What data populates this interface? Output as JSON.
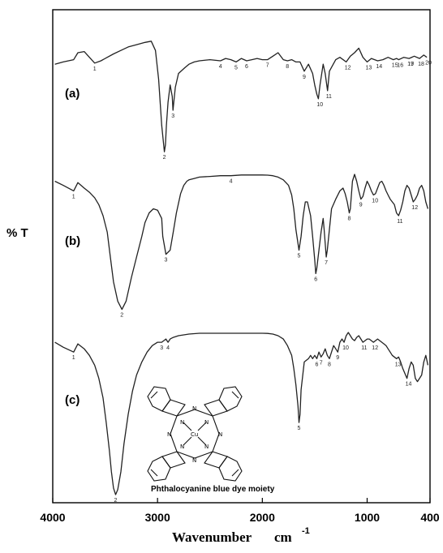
{
  "chart_data": {
    "type": "line",
    "ylabel": "% T",
    "xlabel": "Wavenumber",
    "xunit": "cm",
    "xunit_exp": "-1",
    "xlim": [
      4000,
      400
    ],
    "xticks": [
      "4000",
      "3000",
      "2000",
      "1000",
      "400"
    ],
    "xtick_values": [
      4000,
      3000,
      2000,
      1000,
      400
    ],
    "grid": false,
    "inset_caption": "Phthalocyanine blue dye moiety",
    "inset_atoms": {
      "n": "N",
      "cu": "Cu"
    },
    "series": [
      {
        "name": "(a)",
        "x": [
          3980,
          3900,
          3800,
          3760,
          3700,
          3650,
          3600,
          3540,
          3480,
          3420,
          3350,
          3280,
          3200,
          3120,
          3060,
          3020,
          2990,
          2960,
          2935,
          2925,
          2915,
          2900,
          2880,
          2860,
          2853,
          2845,
          2830,
          2800,
          2740,
          2700,
          2650,
          2600,
          2500,
          2400,
          2350,
          2300,
          2250,
          2200,
          2150,
          2100,
          2050,
          2000,
          1950,
          1900,
          1850,
          1800,
          1760,
          1720,
          1680,
          1640,
          1600,
          1560,
          1520,
          1500,
          1480,
          1465,
          1450,
          1420,
          1400,
          1378,
          1360,
          1300,
          1260,
          1200,
          1160,
          1120,
          1080,
          1040,
          1000,
          960,
          900,
          850,
          800,
          750,
          720,
          700,
          650,
          600,
          550,
          500,
          460,
          430
        ],
        "y": [
          0.22,
          0.2,
          0.18,
          0.12,
          0.11,
          0.16,
          0.21,
          0.19,
          0.16,
          0.13,
          0.1,
          0.07,
          0.05,
          0.03,
          0.02,
          0.1,
          0.35,
          0.75,
          0.98,
          0.92,
          0.75,
          0.55,
          0.4,
          0.5,
          0.62,
          0.55,
          0.42,
          0.3,
          0.25,
          0.22,
          0.2,
          0.19,
          0.18,
          0.19,
          0.17,
          0.18,
          0.2,
          0.17,
          0.19,
          0.18,
          0.17,
          0.18,
          0.18,
          0.15,
          0.12,
          0.18,
          0.19,
          0.18,
          0.2,
          0.2,
          0.28,
          0.22,
          0.3,
          0.4,
          0.48,
          0.52,
          0.4,
          0.22,
          0.3,
          0.45,
          0.28,
          0.18,
          0.16,
          0.2,
          0.15,
          0.12,
          0.08,
          0.16,
          0.2,
          0.17,
          0.19,
          0.18,
          0.16,
          0.18,
          0.17,
          0.18,
          0.16,
          0.17,
          0.15,
          0.17,
          0.14,
          0.16
        ]
      },
      {
        "name": "(b)",
        "x": [
          3980,
          3900,
          3800,
          3760,
          3700,
          3650,
          3600,
          3560,
          3520,
          3480,
          3450,
          3420,
          3380,
          3340,
          3300,
          3250,
          3200,
          3150,
          3120,
          3080,
          3040,
          3000,
          2960,
          2950,
          2920,
          2880,
          2850,
          2820,
          2780,
          2750,
          2720,
          2700,
          2650,
          2600,
          2500,
          2400,
          2300,
          2200,
          2100,
          2000,
          1950,
          1900,
          1850,
          1800,
          1750,
          1720,
          1700,
          1680,
          1650,
          1630,
          1610,
          1590,
          1570,
          1540,
          1520,
          1500,
          1490,
          1480,
          1460,
          1440,
          1420,
          1410,
          1400,
          1390,
          1380,
          1360,
          1340,
          1300,
          1260,
          1230,
          1210,
          1190,
          1170,
          1160,
          1150,
          1140,
          1120,
          1100,
          1080,
          1060,
          1040,
          1020,
          1000,
          980,
          960,
          940,
          920,
          900,
          880,
          860,
          840,
          820,
          800,
          780,
          760,
          740,
          720,
          700,
          680,
          660,
          640,
          620,
          600,
          580,
          560,
          540,
          520,
          500,
          480,
          460,
          440,
          420
        ],
        "y": [
          0.05,
          0.08,
          0.12,
          0.06,
          0.1,
          0.13,
          0.17,
          0.22,
          0.3,
          0.42,
          0.6,
          0.78,
          0.92,
          0.98,
          0.92,
          0.75,
          0.6,
          0.45,
          0.35,
          0.28,
          0.25,
          0.26,
          0.32,
          0.45,
          0.58,
          0.55,
          0.42,
          0.28,
          0.14,
          0.08,
          0.05,
          0.04,
          0.03,
          0.02,
          0.015,
          0.01,
          0.01,
          0.005,
          0.005,
          0.005,
          0.006,
          0.01,
          0.02,
          0.04,
          0.08,
          0.15,
          0.25,
          0.4,
          0.55,
          0.45,
          0.3,
          0.2,
          0.2,
          0.3,
          0.45,
          0.62,
          0.72,
          0.68,
          0.55,
          0.42,
          0.32,
          0.4,
          0.5,
          0.6,
          0.55,
          0.4,
          0.25,
          0.18,
          0.12,
          0.1,
          0.14,
          0.2,
          0.28,
          0.25,
          0.15,
          0.05,
          0.0,
          0.05,
          0.12,
          0.18,
          0.16,
          0.1,
          0.05,
          0.08,
          0.12,
          0.15,
          0.14,
          0.1,
          0.06,
          0.05,
          0.08,
          0.12,
          0.15,
          0.18,
          0.2,
          0.22,
          0.28,
          0.3,
          0.26,
          0.2,
          0.12,
          0.08,
          0.1,
          0.15,
          0.2,
          0.18,
          0.15,
          0.1,
          0.08,
          0.12,
          0.2,
          0.25
        ]
      },
      {
        "name": "(c)",
        "x": [
          3980,
          3900,
          3800,
          3760,
          3700,
          3650,
          3600,
          3560,
          3520,
          3490,
          3460,
          3440,
          3420,
          3400,
          3380,
          3350,
          3320,
          3280,
          3240,
          3200,
          3150,
          3100,
          3050,
          3000,
          2960,
          2940,
          2920,
          2900,
          2880,
          2850,
          2800,
          2700,
          2600,
          2500,
          2400,
          2300,
          2200,
          2100,
          2000,
          1950,
          1900,
          1850,
          1800,
          1760,
          1720,
          1700,
          1680,
          1660,
          1650,
          1640,
          1630,
          1600,
          1560,
          1540,
          1520,
          1500,
          1480,
          1460,
          1440,
          1420,
          1400,
          1380,
          1360,
          1340,
          1320,
          1300,
          1280,
          1260,
          1240,
          1220,
          1200,
          1180,
          1160,
          1140,
          1120,
          1100,
          1080,
          1060,
          1040,
          1020,
          1000,
          980,
          960,
          940,
          920,
          900,
          880,
          860,
          840,
          820,
          800,
          780,
          760,
          740,
          720,
          700,
          680,
          660,
          640,
          620,
          600,
          580,
          560,
          540,
          520,
          500,
          480,
          460,
          440,
          420
        ],
        "y": [
          0.06,
          0.09,
          0.12,
          0.07,
          0.1,
          0.14,
          0.2,
          0.28,
          0.4,
          0.55,
          0.72,
          0.85,
          0.95,
          0.99,
          0.96,
          0.85,
          0.68,
          0.5,
          0.36,
          0.26,
          0.18,
          0.12,
          0.08,
          0.06,
          0.06,
          0.05,
          0.04,
          0.06,
          0.04,
          0.03,
          0.02,
          0.01,
          0.005,
          0.005,
          0.005,
          0.005,
          0.005,
          0.005,
          0.005,
          0.006,
          0.01,
          0.02,
          0.04,
          0.08,
          0.14,
          0.22,
          0.32,
          0.45,
          0.55,
          0.5,
          0.35,
          0.18,
          0.16,
          0.14,
          0.16,
          0.14,
          0.16,
          0.12,
          0.15,
          0.13,
          0.1,
          0.14,
          0.16,
          0.12,
          0.08,
          0.1,
          0.12,
          0.06,
          0.04,
          0.06,
          0.02,
          0.0,
          0.02,
          0.04,
          0.05,
          0.03,
          0.02,
          0.04,
          0.06,
          0.05,
          0.04,
          0.04,
          0.05,
          0.06,
          0.05,
          0.04,
          0.05,
          0.06,
          0.07,
          0.08,
          0.1,
          0.12,
          0.14,
          0.15,
          0.16,
          0.15,
          0.18,
          0.22,
          0.25,
          0.28,
          0.22,
          0.18,
          0.2,
          0.28,
          0.3,
          0.28,
          0.26,
          0.18,
          0.14,
          0.2
        ]
      }
    ],
    "peak_labels": [
      {
        "series": "(a)",
        "labels": [
          "1",
          "2",
          "3",
          "4",
          "5",
          "6",
          "7",
          "8",
          "9",
          "10",
          "11",
          "12",
          "13",
          "14",
          "15",
          "16",
          "17",
          "18",
          "19",
          "20"
        ]
      },
      {
        "series": "(b)",
        "labels": [
          "1",
          "2",
          "3",
          "4",
          "5",
          "6",
          "7",
          "8",
          "9",
          "10",
          "11",
          "12"
        ]
      },
      {
        "series": "(c)",
        "labels": [
          "1",
          "2",
          "3",
          "4",
          "5",
          "6",
          "7",
          "8",
          "9",
          "10",
          "11",
          "12",
          "13",
          "14"
        ]
      }
    ]
  }
}
